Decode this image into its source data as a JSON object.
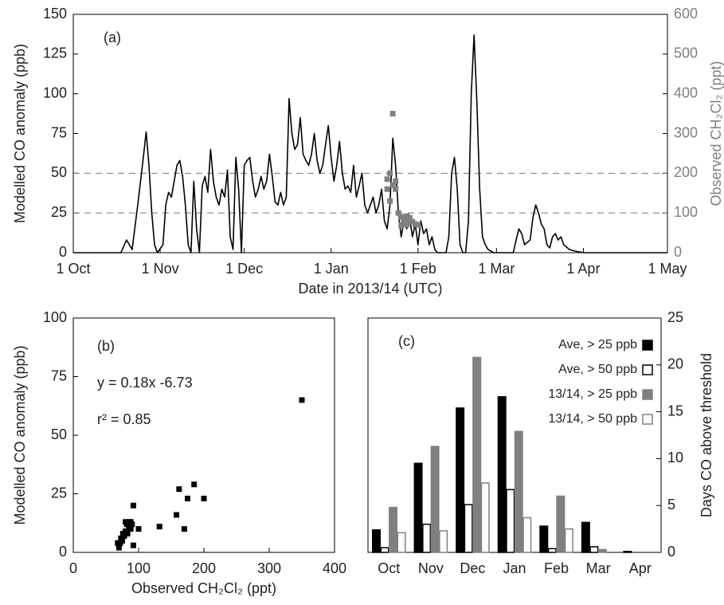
{
  "chart_data": [
    {
      "type": "line",
      "annotation": "(a)",
      "xlabel": "Date in 2013/14 (UTC)",
      "ylabel": "Modelled CO anomaly (ppb)",
      "y2label": "Observed CH₂Cl₂ (ppt)",
      "xlim": [
        "2013-10-01",
        "2014-05-01"
      ],
      "xticks": [
        {
          "value": "2013-10-01",
          "label": "1 Oct"
        },
        {
          "value": "2013-11-01",
          "label": "1 Nov"
        },
        {
          "value": "2013-12-01",
          "label": "1 Dec"
        },
        {
          "value": "2014-01-01",
          "label": "1 Jan"
        },
        {
          "value": "2014-02-01",
          "label": "1 Feb"
        },
        {
          "value": "2014-03-01",
          "label": "1 Mar"
        },
        {
          "value": "2014-04-01",
          "label": "1 Apr"
        },
        {
          "value": "2014-05-01",
          "label": "1 May"
        }
      ],
      "ylim": [
        0,
        150
      ],
      "yticks": [
        0,
        25,
        50,
        75,
        100,
        125,
        150
      ],
      "y2lim": [
        0,
        600
      ],
      "y2ticks": [
        0,
        100,
        200,
        300,
        400,
        500,
        600
      ],
      "y2color": "#808080",
      "hlines": [
        25,
        50
      ],
      "series": [
        {
          "type": "line",
          "color": "#000000",
          "x": [
            "2013-10-01",
            "2013-10-18",
            "2013-10-20",
            "2013-10-22",
            "2013-10-24",
            "2013-10-25",
            "2013-10-26",
            "2013-10-27",
            "2013-10-28",
            "2013-10-29",
            "2013-10-30",
            "2013-10-31",
            "2013-11-02",
            "2013-11-03",
            "2013-11-04",
            "2013-11-05",
            "2013-11-06",
            "2013-11-07",
            "2013-11-08",
            "2013-11-09",
            "2013-11-10",
            "2013-11-11",
            "2013-11-12",
            "2013-11-13",
            "2013-11-14",
            "2013-11-15",
            "2013-11-16",
            "2013-11-17",
            "2013-11-18",
            "2013-11-19",
            "2013-11-20",
            "2013-11-21",
            "2013-11-22",
            "2013-11-23",
            "2013-11-24",
            "2013-11-25",
            "2013-11-26",
            "2013-11-27",
            "2013-11-28",
            "2013-11-29",
            "2013-11-30",
            "2013-12-01",
            "2013-12-02",
            "2013-12-03",
            "2013-12-04",
            "2013-12-05",
            "2013-12-06",
            "2013-12-07",
            "2013-12-08",
            "2013-12-09",
            "2013-12-10",
            "2013-12-11",
            "2013-12-12",
            "2013-12-13",
            "2013-12-14",
            "2013-12-15",
            "2013-12-16",
            "2013-12-17",
            "2013-12-18",
            "2013-12-19",
            "2013-12-20",
            "2013-12-21",
            "2013-12-22",
            "2013-12-23",
            "2013-12-24",
            "2013-12-25",
            "2013-12-26",
            "2013-12-27",
            "2013-12-28",
            "2013-12-29",
            "2013-12-30",
            "2013-12-31",
            "2014-01-01",
            "2014-01-02",
            "2014-01-03",
            "2014-01-04",
            "2014-01-05",
            "2014-01-06",
            "2014-01-07",
            "2014-01-08",
            "2014-01-09",
            "2014-01-10",
            "2014-01-11",
            "2014-01-12",
            "2014-01-13",
            "2014-01-14",
            "2014-01-15",
            "2014-01-16",
            "2014-01-17",
            "2014-01-18",
            "2014-01-19",
            "2014-01-20",
            "2014-01-21",
            "2014-01-22",
            "2014-01-23",
            "2014-01-24",
            "2014-01-25",
            "2014-01-26",
            "2014-01-27",
            "2014-01-28",
            "2014-01-29",
            "2014-01-30",
            "2014-01-31",
            "2014-02-01",
            "2014-02-02",
            "2014-02-03",
            "2014-02-04",
            "2014-02-05",
            "2014-02-06",
            "2014-02-07",
            "2014-02-08",
            "2014-02-11",
            "2014-02-12",
            "2014-02-13",
            "2014-02-14",
            "2014-02-15",
            "2014-02-16",
            "2014-02-17",
            "2014-02-18",
            "2014-02-19",
            "2014-02-20",
            "2014-02-21",
            "2014-02-22",
            "2014-02-23",
            "2014-02-24",
            "2014-02-25",
            "2014-02-26",
            "2014-02-28",
            "2014-03-07",
            "2014-03-08",
            "2014-03-09",
            "2014-03-10",
            "2014-03-11",
            "2014-03-13",
            "2014-03-14",
            "2014-03-15",
            "2014-03-16",
            "2014-03-17",
            "2014-03-18",
            "2014-03-19",
            "2014-03-20",
            "2014-03-21",
            "2014-03-22",
            "2014-03-23",
            "2014-03-24",
            "2014-03-25",
            "2014-03-27",
            "2014-03-29",
            "2014-04-01",
            "2014-05-01"
          ],
          "values": [
            0,
            0,
            8,
            2,
            30,
            45,
            60,
            76,
            55,
            25,
            5,
            0,
            5,
            30,
            38,
            35,
            45,
            55,
            58,
            48,
            30,
            5,
            0,
            45,
            15,
            0,
            42,
            48,
            38,
            65,
            45,
            35,
            30,
            40,
            35,
            52,
            10,
            2,
            60,
            40,
            0,
            55,
            58,
            60,
            45,
            35,
            40,
            48,
            40,
            45,
            62,
            48,
            32,
            30,
            38,
            30,
            35,
            97,
            75,
            65,
            68,
            85,
            62,
            58,
            55,
            62,
            75,
            58,
            50,
            55,
            68,
            80,
            60,
            45,
            55,
            70,
            50,
            40,
            42,
            38,
            55,
            35,
            42,
            50,
            30,
            25,
            30,
            35,
            25,
            30,
            40,
            20,
            15,
            30,
            72,
            55,
            25,
            10,
            20,
            15,
            22,
            10,
            18,
            5,
            20,
            12,
            15,
            5,
            10,
            2,
            0,
            0,
            10,
            50,
            60,
            40,
            5,
            0,
            0,
            20,
            100,
            137,
            95,
            40,
            10,
            5,
            2,
            0,
            0,
            8,
            15,
            12,
            5,
            8,
            22,
            30,
            25,
            18,
            15,
            5,
            3,
            10,
            12,
            8,
            10,
            5,
            2,
            1,
            0,
            0
          ]
        },
        {
          "type": "scatter",
          "axis": "y2",
          "color": "#808080",
          "x": [
            "2014-01-21",
            "2014-01-21",
            "2014-01-22",
            "2014-01-22",
            "2014-01-23",
            "2014-01-23",
            "2014-01-24",
            "2014-01-24",
            "2014-01-25",
            "2014-01-26",
            "2014-01-26",
            "2014-01-27",
            "2014-01-27",
            "2014-01-28",
            "2014-01-28",
            "2014-01-29",
            "2014-01-29",
            "2014-01-30",
            "2014-01-31",
            "2014-02-01"
          ],
          "values": [
            185,
            160,
            200,
            130,
            350,
            170,
            180,
            160,
            100,
            90,
            70,
            85,
            75,
            92,
            70,
            88,
            80,
            78,
            72,
            70
          ]
        }
      ]
    },
    {
      "type": "scatter",
      "annotations": [
        "(b)",
        "y = 0.18x -6.73",
        "r² = 0.85"
      ],
      "xlabel": "Observed CH₂Cl₂ (ppt)",
      "ylabel": "Modelled CO anomaly (ppb)",
      "xlim": [
        0,
        400
      ],
      "xticks": [
        0,
        100,
        200,
        300,
        400
      ],
      "ylim": [
        0,
        100
      ],
      "yticks": [
        0,
        25,
        50,
        75,
        100
      ],
      "series": [
        {
          "type": "scatter",
          "color": "#000000",
          "x": [
            350,
            200,
            185,
            175,
            170,
            162,
            158,
            132,
            100,
            92,
            92,
            90,
            88,
            86,
            85,
            83,
            80,
            78,
            76,
            75,
            73,
            72,
            70,
            68,
            82,
            80,
            88
          ],
          "values": [
            65,
            23,
            29,
            23,
            10,
            27,
            16,
            11,
            10,
            20,
            3,
            12,
            10,
            13,
            11,
            8,
            9,
            7,
            8,
            5,
            6,
            4,
            2,
            4,
            12,
            13,
            13
          ]
        }
      ]
    },
    {
      "type": "bar",
      "annotation": "(c)",
      "ylabel": "Days CO above threshold",
      "yaxis": "right",
      "legend": "upper right",
      "categories": [
        "Oct",
        "Nov",
        "Dec",
        "Jan",
        "Feb",
        "Mar",
        "Apr"
      ],
      "ylim": [
        0,
        25
      ],
      "yticks": [
        0,
        5,
        10,
        15,
        20,
        25
      ],
      "series": [
        {
          "name": "Ave, > 25 ppb",
          "color": "#000000",
          "edgecolor": "#000000",
          "values": [
            2.4,
            9.5,
            15.4,
            16.6,
            2.8,
            3.2,
            0.1
          ]
        },
        {
          "name": "Ave, > 50 ppb",
          "color": "#ffffff",
          "edgecolor": "#000000",
          "values": [
            0.5,
            3.0,
            5.1,
            6.7,
            0.4,
            0.6,
            0
          ]
        },
        {
          "name": "13/14, > 25 ppb",
          "color": "#808080",
          "edgecolor": "#808080",
          "values": [
            4.8,
            11.3,
            20.8,
            12.9,
            6.0,
            0.3,
            0
          ]
        },
        {
          "name": "13/14, > 50 ppb",
          "color": "#ffffff",
          "edgecolor": "#808080",
          "values": [
            2.1,
            2.3,
            7.4,
            3.7,
            2.5,
            0,
            0
          ]
        }
      ]
    }
  ]
}
